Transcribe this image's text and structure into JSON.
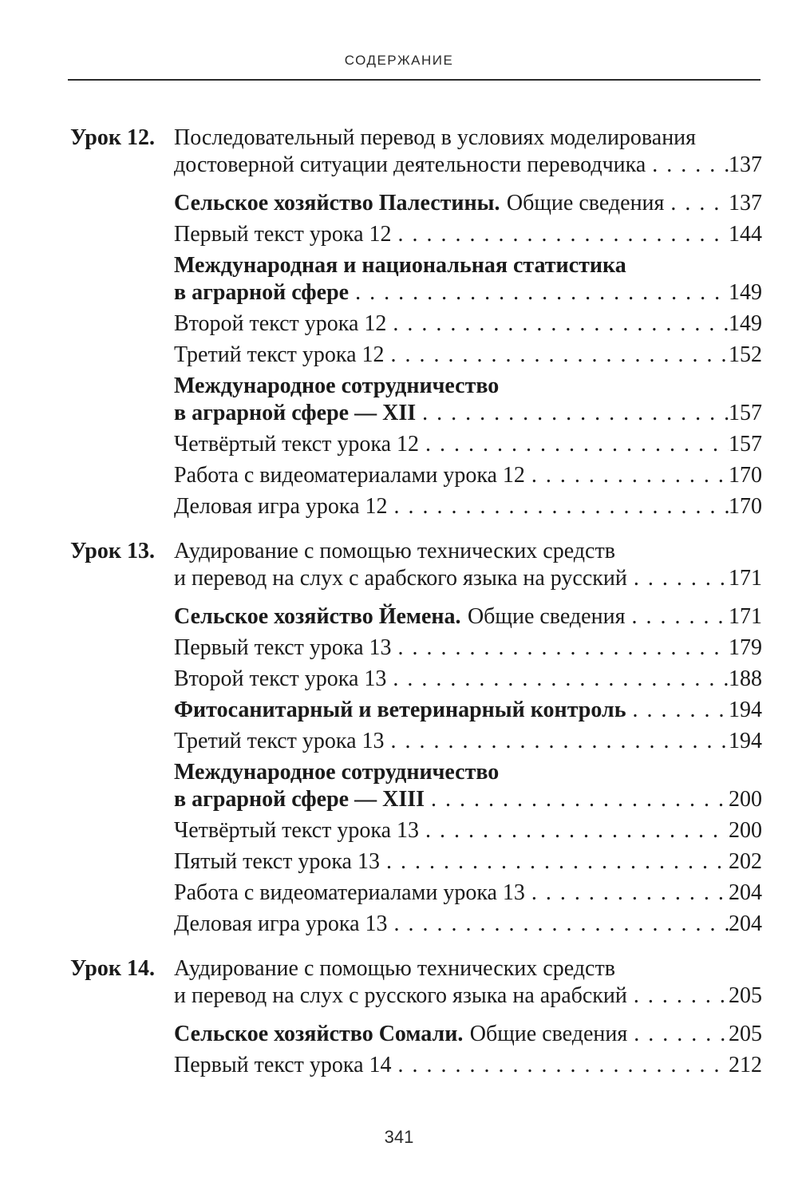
{
  "page": {
    "header_title": "СОДЕРЖАНИЕ",
    "footer_page_number": "341",
    "ink_color": "#1a1a1a"
  },
  "toc": {
    "groups": [
      {
        "label": "Урок 12.",
        "rows": [
          {
            "text": "Последовательный перевод в условиях моделирования"
          },
          {
            "text": "достоверной ситуации деятельности переводчика",
            "page": "137"
          },
          {
            "bold": "Сельское хозяйство Палестины.",
            "rest": "Общие сведения",
            "page": "137"
          },
          {
            "text": "Первый текст урока 12",
            "page": "144"
          },
          {
            "bold": "Международная и национальная статистика"
          },
          {
            "bold": "в аграрной сфере",
            "page": "149"
          },
          {
            "text": "Второй текст урока 12",
            "page": "149"
          },
          {
            "text": "Третий текст урока 12",
            "page": "152"
          },
          {
            "bold": "Международное сотрудничество"
          },
          {
            "bold": "в аграрной сфере — XII",
            "page": "157"
          },
          {
            "text": "Четвёртый текст урока 12",
            "page": "157"
          },
          {
            "text": "Работа с видеоматериалами урока 12",
            "page": "170"
          },
          {
            "text": "Деловая игра урока 12",
            "page": "170"
          }
        ]
      },
      {
        "label": "Урок 13.",
        "rows": [
          {
            "text": "Аудирование с помощью технических средств"
          },
          {
            "text": "и перевод на слух с арабского языка на русский",
            "page": "171"
          },
          {
            "bold": "Сельское хозяйство Йемена.",
            "rest": "Общие сведения",
            "page": "171"
          },
          {
            "text": "Первый текст урока 13",
            "page": "179"
          },
          {
            "text": "Второй текст урока 13",
            "page": "188"
          },
          {
            "bold": "Фитосанитарный и ветеринарный контроль",
            "page": "194"
          },
          {
            "text": "Третий текст урока 13",
            "page": "194"
          },
          {
            "bold": "Международное сотрудничество"
          },
          {
            "bold": "в аграрной сфере — XIII",
            "page": "200"
          },
          {
            "text": "Четвёртый текст урока 13",
            "page": "200"
          },
          {
            "text": "Пятый текст урока 13",
            "page": "202"
          },
          {
            "text": "Работа с видеоматериалами урока 13",
            "page": "204"
          },
          {
            "text": "Деловая игра урока 13",
            "page": "204"
          }
        ]
      },
      {
        "label": "Урок 14.",
        "rows": [
          {
            "text": "Аудирование с помощью технических средств"
          },
          {
            "text": "и перевод на слух с русского языка на арабский",
            "page": "205"
          },
          {
            "bold": "Сельское хозяйство Сомали.",
            "rest": "Общие сведения",
            "page": "205"
          },
          {
            "text": "Первый текст урока 14",
            "page": "212"
          }
        ]
      }
    ]
  }
}
